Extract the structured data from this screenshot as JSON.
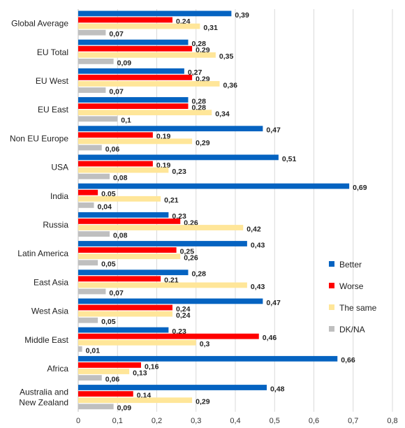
{
  "chart_data": {
    "type": "bar",
    "orientation": "horizontal",
    "categories": [
      "Global Average",
      "EU Total",
      "EU West",
      "EU East",
      "Non EU Europe",
      "USA",
      "India",
      "Russia",
      "Latin America",
      "East Asia",
      "West Asia",
      "Middle East",
      "Africa",
      "Australia and New Zealand"
    ],
    "category_lines": [
      [
        "Global Average"
      ],
      [
        "EU Total"
      ],
      [
        "EU West"
      ],
      [
        "EU East"
      ],
      [
        "Non EU Europe"
      ],
      [
        "USA"
      ],
      [
        "India"
      ],
      [
        "Russia"
      ],
      [
        "Latin America"
      ],
      [
        "East Asia"
      ],
      [
        "West Asia"
      ],
      [
        "Middle East"
      ],
      [
        "Africa"
      ],
      [
        "Australia and",
        "New Zealand"
      ]
    ],
    "series": [
      {
        "name": "Better",
        "color": "#0563C1",
        "values": [
          0.39,
          0.28,
          0.27,
          0.28,
          0.47,
          0.51,
          0.69,
          0.23,
          0.43,
          0.28,
          0.47,
          0.23,
          0.66,
          0.48
        ],
        "labels": [
          "0,39",
          "0,28",
          "0,27",
          "0,28",
          "0,47",
          "0,51",
          "0,69",
          "0,23",
          "0,43",
          "0,28",
          "0,47",
          "0,23",
          "0,66",
          "0,48"
        ]
      },
      {
        "name": "Worse",
        "color": "#FF0000",
        "values": [
          0.24,
          0.29,
          0.29,
          0.28,
          0.19,
          0.19,
          0.05,
          0.26,
          0.25,
          0.21,
          0.24,
          0.46,
          0.16,
          0.14
        ],
        "labels": [
          "0,24",
          "0,29",
          "0,29",
          "0,28",
          "0,19",
          "0,19",
          "0,05",
          "0,26",
          "0,25",
          "0,21",
          "0,24",
          "0,46",
          "0,16",
          "0,14"
        ]
      },
      {
        "name": "The same",
        "color": "#FFE699",
        "values": [
          0.31,
          0.35,
          0.36,
          0.34,
          0.29,
          0.23,
          0.21,
          0.42,
          0.26,
          0.43,
          0.24,
          0.3,
          0.13,
          0.29
        ],
        "labels": [
          "0,31",
          "0,35",
          "0,36",
          "0,34",
          "0,29",
          "0,23",
          "0,21",
          "0,42",
          "0,26",
          "0,43",
          "0,24",
          "0,3",
          "0,13",
          "0,29"
        ]
      },
      {
        "name": "DK/NA",
        "color": "#BFBFBF",
        "values": [
          0.07,
          0.09,
          0.07,
          0.1,
          0.06,
          0.08,
          0.04,
          0.08,
          0.05,
          0.07,
          0.05,
          0.01,
          0.06,
          0.09
        ],
        "labels": [
          "0,07",
          "0,09",
          "0,07",
          "0,1",
          "0,06",
          "0,08",
          "0,04",
          "0,08",
          "0,05",
          "0,07",
          "0,05",
          "0,01",
          "0,06",
          "0,09"
        ]
      }
    ],
    "xlim": [
      0,
      0.8
    ],
    "x_ticks": [
      0,
      0.1,
      0.2,
      0.3,
      0.4,
      0.5,
      0.6,
      0.7,
      0.8
    ],
    "x_tick_labels": [
      "0",
      "0,1",
      "0,2",
      "0,3",
      "0,4",
      "0,5",
      "0,6",
      "0,7",
      "0,8"
    ],
    "title": "",
    "xlabel": "",
    "ylabel": "",
    "grid": true,
    "legend_position": "right"
  }
}
